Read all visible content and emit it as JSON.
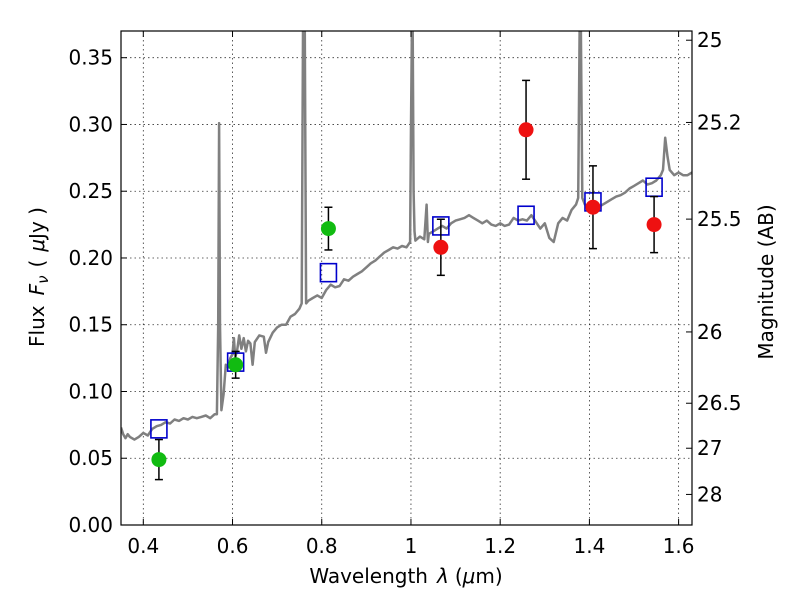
{
  "chart_data": {
    "type": "scatter",
    "title": "",
    "xlabel_text": "Wavelength",
    "xlabel_symbol": "λ",
    "xlabel_unit_open": "(",
    "xlabel_unit_mu": "μ",
    "xlabel_unit_rest": "m)",
    "ylabel_text": "Flux",
    "ylabel_symbol": "F",
    "ylabel_subscript": "ν",
    "ylabel_unit_open": "(",
    "ylabel_unit_mu": "μ",
    "ylabel_unit_rest": "Jy )",
    "y2label": "Magnitude (AB)",
    "xlim": [
      0.35,
      1.63
    ],
    "ylim": [
      0.0,
      0.37
    ],
    "grid": true,
    "x_ticks": [
      {
        "value": 0.4,
        "label": "0.4"
      },
      {
        "value": 0.6,
        "label": "0.6"
      },
      {
        "value": 0.8,
        "label": "0.8"
      },
      {
        "value": 1.0,
        "label": "1"
      },
      {
        "value": 1.2,
        "label": "1.2"
      },
      {
        "value": 1.4,
        "label": "1.4"
      },
      {
        "value": 1.6,
        "label": "1.6"
      }
    ],
    "y_ticks": [
      {
        "value": 0.0,
        "label": "0.00"
      },
      {
        "value": 0.05,
        "label": "0.05"
      },
      {
        "value": 0.1,
        "label": "0.10"
      },
      {
        "value": 0.15,
        "label": "0.15"
      },
      {
        "value": 0.2,
        "label": "0.20"
      },
      {
        "value": 0.25,
        "label": "0.25"
      },
      {
        "value": 0.3,
        "label": "0.30"
      },
      {
        "value": 0.35,
        "label": "0.35"
      }
    ],
    "y2_ticks": [
      {
        "flux": 0.3631,
        "label": "25"
      },
      {
        "flux": 0.3015,
        "label": "25.2"
      },
      {
        "flux": 0.2291,
        "label": "25.5"
      },
      {
        "flux": 0.1446,
        "label": "26"
      },
      {
        "flux": 0.0912,
        "label": "26.5"
      },
      {
        "flux": 0.0575,
        "label": "27"
      },
      {
        "flux": 0.0229,
        "label": "28"
      }
    ],
    "series": [
      {
        "name": "model spectrum",
        "kind": "line",
        "color": "#808080",
        "points": [
          [
            0.35,
            0.073
          ],
          [
            0.355,
            0.068
          ],
          [
            0.36,
            0.065
          ],
          [
            0.365,
            0.068
          ],
          [
            0.37,
            0.066
          ],
          [
            0.38,
            0.064
          ],
          [
            0.39,
            0.066
          ],
          [
            0.4,
            0.069
          ],
          [
            0.41,
            0.067
          ],
          [
            0.42,
            0.072
          ],
          [
            0.43,
            0.074
          ],
          [
            0.44,
            0.075
          ],
          [
            0.45,
            0.077
          ],
          [
            0.46,
            0.076
          ],
          [
            0.47,
            0.079
          ],
          [
            0.48,
            0.078
          ],
          [
            0.49,
            0.08
          ],
          [
            0.5,
            0.079
          ],
          [
            0.51,
            0.081
          ],
          [
            0.52,
            0.08
          ],
          [
            0.53,
            0.081
          ],
          [
            0.54,
            0.082
          ],
          [
            0.55,
            0.08
          ],
          [
            0.56,
            0.083
          ],
          [
            0.565,
            0.083
          ],
          [
            0.568,
            0.15
          ],
          [
            0.57,
            0.301
          ],
          [
            0.572,
            0.15
          ],
          [
            0.575,
            0.086
          ],
          [
            0.58,
            0.098
          ],
          [
            0.585,
            0.12
          ],
          [
            0.59,
            0.118
          ],
          [
            0.595,
            0.125
          ],
          [
            0.6,
            0.128
          ],
          [
            0.603,
            0.14
          ],
          [
            0.606,
            0.126
          ],
          [
            0.61,
            0.13
          ],
          [
            0.615,
            0.142
          ],
          [
            0.62,
            0.132
          ],
          [
            0.625,
            0.14
          ],
          [
            0.63,
            0.13
          ],
          [
            0.635,
            0.138
          ],
          [
            0.64,
            0.136
          ],
          [
            0.645,
            0.12
          ],
          [
            0.65,
            0.137
          ],
          [
            0.66,
            0.142
          ],
          [
            0.67,
            0.141
          ],
          [
            0.675,
            0.129
          ],
          [
            0.68,
            0.137
          ],
          [
            0.69,
            0.144
          ],
          [
            0.7,
            0.148
          ],
          [
            0.71,
            0.15
          ],
          [
            0.72,
            0.15
          ],
          [
            0.73,
            0.156
          ],
          [
            0.74,
            0.158
          ],
          [
            0.75,
            0.162
          ],
          [
            0.755,
            0.166
          ],
          [
            0.758,
            0.37
          ],
          [
            0.762,
            0.37
          ],
          [
            0.765,
            0.166
          ],
          [
            0.77,
            0.168
          ],
          [
            0.78,
            0.17
          ],
          [
            0.79,
            0.172
          ],
          [
            0.8,
            0.17
          ],
          [
            0.81,
            0.176
          ],
          [
            0.82,
            0.18
          ],
          [
            0.83,
            0.178
          ],
          [
            0.84,
            0.179
          ],
          [
            0.85,
            0.184
          ],
          [
            0.86,
            0.183
          ],
          [
            0.87,
            0.186
          ],
          [
            0.88,
            0.188
          ],
          [
            0.89,
            0.19
          ],
          [
            0.9,
            0.193
          ],
          [
            0.91,
            0.196
          ],
          [
            0.92,
            0.198
          ],
          [
            0.93,
            0.201
          ],
          [
            0.94,
            0.204
          ],
          [
            0.95,
            0.206
          ],
          [
            0.96,
            0.208
          ],
          [
            0.97,
            0.207
          ],
          [
            0.98,
            0.209
          ],
          [
            0.99,
            0.208
          ],
          [
            0.998,
            0.212
          ],
          [
            1.0,
            0.3
          ],
          [
            1.002,
            0.37
          ],
          [
            1.004,
            0.37
          ],
          [
            1.006,
            0.25
          ],
          [
            1.008,
            0.22
          ],
          [
            1.01,
            0.213
          ],
          [
            1.02,
            0.216
          ],
          [
            1.03,
            0.214
          ],
          [
            1.035,
            0.24
          ],
          [
            1.038,
            0.212
          ],
          [
            1.04,
            0.218
          ],
          [
            1.05,
            0.22
          ],
          [
            1.06,
            0.222
          ],
          [
            1.07,
            0.224
          ],
          [
            1.08,
            0.222
          ],
          [
            1.09,
            0.226
          ],
          [
            1.1,
            0.228
          ],
          [
            1.11,
            0.229
          ],
          [
            1.12,
            0.23
          ],
          [
            1.13,
            0.232
          ],
          [
            1.14,
            0.23
          ],
          [
            1.15,
            0.228
          ],
          [
            1.16,
            0.226
          ],
          [
            1.17,
            0.228
          ],
          [
            1.18,
            0.225
          ],
          [
            1.19,
            0.224
          ],
          [
            1.2,
            0.226
          ],
          [
            1.21,
            0.224
          ],
          [
            1.22,
            0.225
          ],
          [
            1.23,
            0.23
          ],
          [
            1.24,
            0.228
          ],
          [
            1.25,
            0.229
          ],
          [
            1.26,
            0.228
          ],
          [
            1.27,
            0.232
          ],
          [
            1.28,
            0.227
          ],
          [
            1.29,
            0.222
          ],
          [
            1.3,
            0.226
          ],
          [
            1.31,
            0.215
          ],
          [
            1.32,
            0.212
          ],
          [
            1.33,
            0.226
          ],
          [
            1.34,
            0.23
          ],
          [
            1.35,
            0.228
          ],
          [
            1.36,
            0.236
          ],
          [
            1.37,
            0.24
          ],
          [
            1.375,
            0.245
          ],
          [
            1.378,
            0.37
          ],
          [
            1.381,
            0.37
          ],
          [
            1.384,
            0.245
          ],
          [
            1.39,
            0.24
          ],
          [
            1.4,
            0.238
          ],
          [
            1.41,
            0.236
          ],
          [
            1.42,
            0.238
          ],
          [
            1.43,
            0.24
          ],
          [
            1.44,
            0.242
          ],
          [
            1.45,
            0.244
          ],
          [
            1.46,
            0.246
          ],
          [
            1.47,
            0.247
          ],
          [
            1.48,
            0.249
          ],
          [
            1.49,
            0.252
          ],
          [
            1.5,
            0.254
          ],
          [
            1.51,
            0.256
          ],
          [
            1.52,
            0.258
          ],
          [
            1.53,
            0.255
          ],
          [
            1.54,
            0.256
          ],
          [
            1.55,
            0.258
          ],
          [
            1.56,
            0.262
          ],
          [
            1.565,
            0.266
          ],
          [
            1.57,
            0.29
          ],
          [
            1.575,
            0.276
          ],
          [
            1.58,
            0.266
          ],
          [
            1.59,
            0.262
          ],
          [
            1.6,
            0.264
          ],
          [
            1.61,
            0.262
          ],
          [
            1.62,
            0.262
          ],
          [
            1.63,
            0.264
          ]
        ]
      },
      {
        "name": "model photometry",
        "kind": "open-square",
        "color": "#0000cc",
        "x": [
          0.435,
          0.607,
          0.815,
          1.067,
          1.258,
          1.408,
          1.545
        ],
        "y": [
          0.072,
          0.122,
          0.189,
          0.224,
          0.232,
          0.242,
          0.253
        ]
      },
      {
        "name": "observed (green)",
        "kind": "filled-circle",
        "color": "#11bb11",
        "x": [
          0.435,
          0.607,
          0.815
        ],
        "y": [
          0.049,
          0.12,
          0.222
        ],
        "yerr": [
          0.015,
          0.01,
          0.016
        ]
      },
      {
        "name": "observed (red)",
        "kind": "filled-circle",
        "color": "#ee1111",
        "x": [
          1.067,
          1.258,
          1.408,
          1.545
        ],
        "y": [
          0.208,
          0.296,
          0.238,
          0.225
        ],
        "yerr": [
          0.021,
          0.037,
          0.031,
          0.021
        ]
      }
    ]
  }
}
